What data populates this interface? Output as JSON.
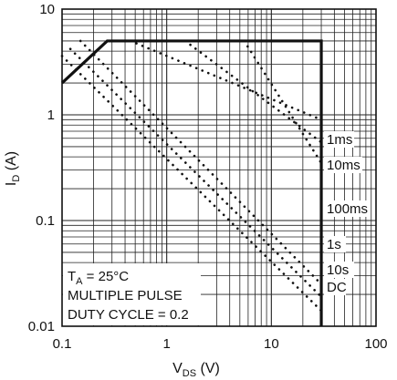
{
  "chart_data": {
    "type": "line",
    "x_scale": "log",
    "y_scale": "log",
    "xlim": [
      0.1,
      100
    ],
    "ylim": [
      0.01,
      10
    ],
    "grid": true,
    "x_ticks": [
      "0.1",
      "1",
      "10",
      "100"
    ],
    "y_ticks": [
      "10",
      "1",
      "0.1",
      "0.01"
    ],
    "xlabel": {
      "main": "V",
      "sub": "DS",
      "unit": " (V)"
    },
    "ylabel": {
      "main": "I",
      "sub": "D",
      "unit": " (A)"
    },
    "boundary": {
      "x": [
        0.1,
        0.27,
        30,
        30
      ],
      "y": [
        2,
        5,
        5,
        0.01
      ]
    },
    "series": [
      {
        "name": "1ms",
        "x": [
          0.45,
          30
        ],
        "y": [
          5,
          0.9
        ]
      },
      {
        "name": "10ms",
        "x": [
          1.5,
          30
        ],
        "y": [
          5,
          0.55
        ]
      },
      {
        "name": "100ms",
        "x": [
          5.5,
          30
        ],
        "y": [
          5,
          0.35
        ]
      },
      {
        "name": "1s",
        "x": [
          0.15,
          30
        ],
        "y": [
          5,
          0.025
        ]
      },
      {
        "name": "10s",
        "x": [
          0.12,
          30
        ],
        "y": [
          4.2,
          0.019
        ]
      },
      {
        "name": "DC",
        "x": [
          0.1,
          30
        ],
        "y": [
          3.6,
          0.014
        ]
      }
    ],
    "legend_box": {
      "ta_main": "T",
      "ta_sub": "A",
      "ta_rest": " = 25°C",
      "line2": "MULTIPLE PULSE",
      "line3": "DUTY CYCLE = 0.2"
    }
  }
}
